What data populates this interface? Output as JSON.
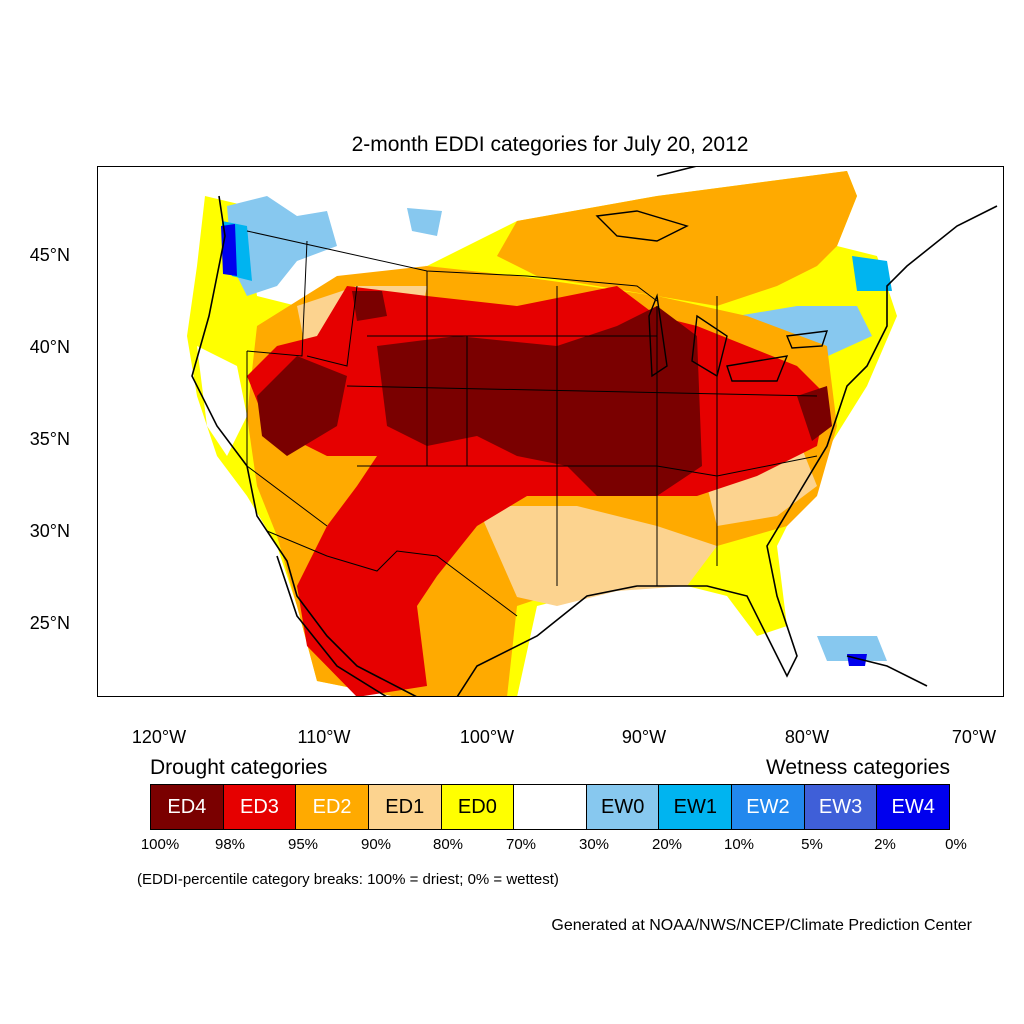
{
  "title": "2-month EDDI categories for July 20, 2012",
  "lat_labels": [
    "45°N",
    "40°N",
    "35°N",
    "30°N",
    "25°N"
  ],
  "lon_labels": [
    "120°W",
    "110°W",
    "100°W",
    "90°W",
    "80°W",
    "70°W"
  ],
  "legend": {
    "drought_heading": "Drought categories",
    "wetness_heading": "Wetness categories",
    "categories": [
      {
        "label": "ED4",
        "color": "#7a0000",
        "text_color": "#ffffff"
      },
      {
        "label": "ED3",
        "color": "#e60000",
        "text_color": "#ffffff"
      },
      {
        "label": "ED2",
        "color": "#ffaa00",
        "text_color": "#ffffff"
      },
      {
        "label": "ED1",
        "color": "#fcd38f",
        "text_color": "#000000"
      },
      {
        "label": "ED0",
        "color": "#ffff00",
        "text_color": "#000000"
      },
      {
        "label": "",
        "color": "#ffffff",
        "text_color": "#000000"
      },
      {
        "label": "EW0",
        "color": "#87c8ef",
        "text_color": "#000000"
      },
      {
        "label": "EW1",
        "color": "#00b4f0",
        "text_color": "#000000"
      },
      {
        "label": "EW2",
        "color": "#2288ee",
        "text_color": "#ffffff"
      },
      {
        "label": "EW3",
        "color": "#3f5fd8",
        "text_color": "#ffffff"
      },
      {
        "label": "EW4",
        "color": "#0000ee",
        "text_color": "#ffffff"
      }
    ],
    "percentiles": [
      "100%",
      "98%",
      "95%",
      "90%",
      "80%",
      "70%",
      "30%",
      "20%",
      "10%",
      "5%",
      "2%",
      "0%"
    ]
  },
  "note": "(EDDI-percentile category breaks: 100% = driest; 0% = wettest)",
  "credit": "Generated at NOAA/NWS/NCEP/Climate Prediction Center"
}
